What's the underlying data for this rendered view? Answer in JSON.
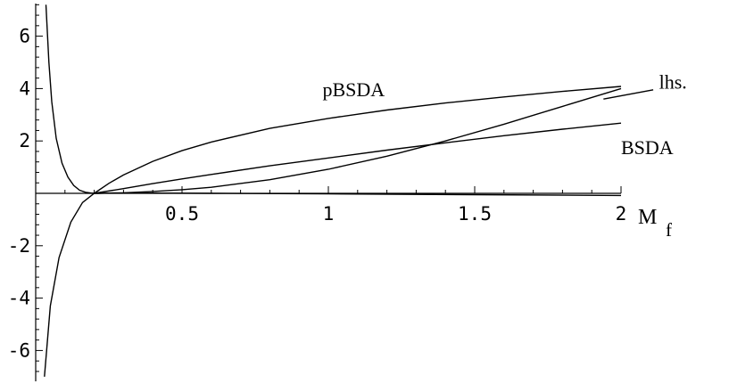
{
  "chart_data": {
    "type": "line",
    "title": "",
    "xlabel": {
      "main": "M",
      "subscript": "f"
    },
    "ylabel": "",
    "xlim": [
      0,
      2
    ],
    "ylim": [
      -7.2,
      7.2
    ],
    "x_ticks": [
      0.5,
      1,
      1.5,
      2
    ],
    "x_tick_labels": [
      "0.5",
      "1",
      "1.5",
      "2"
    ],
    "y_ticks": [
      -6,
      -4,
      -2,
      2,
      4,
      6
    ],
    "y_tick_labels": [
      "-6",
      "-4",
      "-2",
      "2",
      "4",
      "6"
    ],
    "x_minor_step": 0.1,
    "y_minor_step": 0.4,
    "grid": false,
    "series": [
      {
        "name": "pBSDA",
        "x": [
          0.03,
          0.05,
          0.08,
          0.12,
          0.16,
          0.2,
          0.25,
          0.3,
          0.4,
          0.5,
          0.6,
          0.8,
          1.0,
          1.2,
          1.4,
          1.6,
          1.8,
          2.0
        ],
        "values": [
          -7.0,
          -4.3,
          -2.45,
          -1.1,
          -0.35,
          0.0,
          0.38,
          0.7,
          1.22,
          1.63,
          1.96,
          2.48,
          2.86,
          3.18,
          3.45,
          3.68,
          3.89,
          4.08
        ]
      },
      {
        "name": "BSDA",
        "x": [
          0.2,
          0.3,
          0.4,
          0.5,
          0.6,
          0.8,
          1.0,
          1.2,
          1.4,
          1.6,
          1.8,
          2.0
        ],
        "values": [
          0.0,
          0.18,
          0.37,
          0.55,
          0.72,
          1.05,
          1.35,
          1.65,
          1.93,
          2.2,
          2.45,
          2.68
        ]
      },
      {
        "name": "lhs.",
        "x": [
          0.2,
          0.3,
          0.4,
          0.5,
          0.6,
          0.8,
          1.0,
          1.2,
          1.4,
          1.6,
          1.8,
          2.0
        ],
        "values": [
          0.0,
          0.02,
          0.07,
          0.14,
          0.23,
          0.52,
          0.92,
          1.42,
          2.0,
          2.64,
          3.32,
          4.0
        ]
      },
      {
        "name": "",
        "x": [
          0.035,
          0.045,
          0.055,
          0.07,
          0.09,
          0.11,
          0.13,
          0.15,
          0.17,
          0.19,
          0.21,
          0.25,
          0.3,
          0.4,
          0.6,
          1.0,
          1.5,
          2.0
        ],
        "values": [
          7.2,
          5.0,
          3.5,
          2.1,
          1.15,
          0.62,
          0.3,
          0.12,
          0.04,
          0.01,
          0.0,
          0.01,
          0.015,
          0.01,
          0.0,
          -0.02,
          -0.05,
          -0.08
        ]
      }
    ],
    "annotations": [
      {
        "text": "pBSDA",
        "target_series": "pBSDA"
      },
      {
        "text": "BSDA",
        "target_series": "BSDA"
      },
      {
        "text": "lhs.",
        "target_series": "lhs."
      }
    ]
  }
}
